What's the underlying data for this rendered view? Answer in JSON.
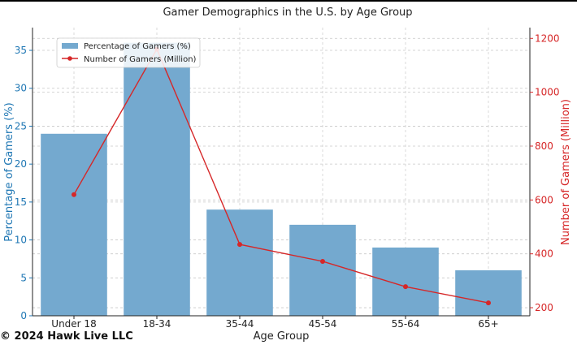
{
  "chart_data": {
    "type": "bar+line",
    "title": "Gamer Demographics in the U.S. by Age Group",
    "xlabel": "Age Group",
    "ylabel_left": "Percentage of Gamers (%)",
    "ylabel_right": "Number of Gamers (Million)",
    "categories": [
      "Under 18",
      "18-34",
      "35-44",
      "45-54",
      "55-64",
      "65+"
    ],
    "ylim_left": [
      0,
      38
    ],
    "yticks_left": [
      0,
      5,
      10,
      15,
      20,
      25,
      30,
      35
    ],
    "ylim_right": [
      170,
      1240
    ],
    "yticks_right": [
      200,
      400,
      600,
      800,
      1000,
      1200
    ],
    "grid": true,
    "legend_position": "top-left",
    "series": [
      {
        "name": "Percentage of Gamers (%)",
        "type": "bar",
        "axis": "left",
        "color": "#74a9cf",
        "values": [
          24,
          36,
          14,
          12,
          9,
          6
        ]
      },
      {
        "name": "Number of Gamers (Million)",
        "type": "line",
        "axis": "right",
        "color": "#d62728",
        "values": [
          620,
          1160,
          435,
          372,
          278,
          218
        ]
      }
    ],
    "left_axis_color": "#1f77b4",
    "right_axis_color": "#d62728"
  },
  "footer": {
    "copyright": "© 2024 Hawk Live LLC"
  }
}
